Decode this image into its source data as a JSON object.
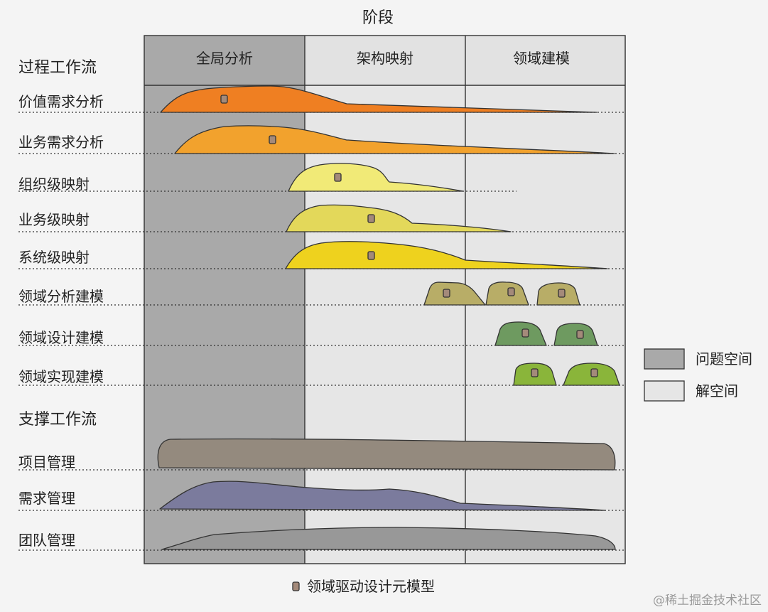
{
  "title": "阶段",
  "phases": [
    {
      "label": "全局分析",
      "space": "problem"
    },
    {
      "label": "架构映射",
      "space": "solution"
    },
    {
      "label": "领域建模",
      "space": "solution"
    }
  ],
  "sections": {
    "process": "过程工作流",
    "support": "支撑工作流"
  },
  "workflows": [
    {
      "label": "价值需求分析",
      "group": "process",
      "color": "#ef7f22"
    },
    {
      "label": "业务需求分析",
      "group": "process",
      "color": "#f2a22d"
    },
    {
      "label": "组织级映射",
      "group": "process",
      "color": "#f1ea77"
    },
    {
      "label": "业务级映射",
      "group": "process",
      "color": "#e3d85a"
    },
    {
      "label": "系统级映射",
      "group": "process",
      "color": "#eed21e"
    },
    {
      "label": "领域分析建模",
      "group": "process",
      "color": "#b8ad67"
    },
    {
      "label": "领域设计建模",
      "group": "process",
      "color": "#6e9a60"
    },
    {
      "label": "领域实现建模",
      "group": "process",
      "color": "#8ab53a"
    },
    {
      "label": "项目管理",
      "group": "support",
      "color": "#948a7e"
    },
    {
      "label": "需求管理",
      "group": "support",
      "color": "#7b7b9d"
    },
    {
      "label": "团队管理",
      "group": "support",
      "color": "#989898"
    }
  ],
  "legend": {
    "problem_space": "问题空间",
    "solution_space": "解空间",
    "problem_color": "#a9a9a9",
    "solution_color": "#e6e6e6",
    "marker": "领域驱动设计元模型",
    "marker_icon": "meta-model-square-icon"
  },
  "watermark": "@稀土掘金技术社区"
}
